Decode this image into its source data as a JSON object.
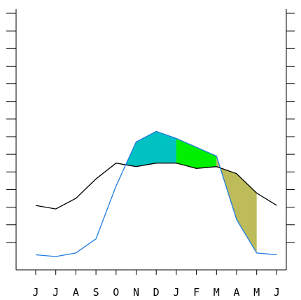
{
  "chart_data": {
    "type": "line",
    "title": "",
    "xlabel": "",
    "ylabel": "",
    "x_tick_labels": [
      "J",
      "J",
      "A",
      "S",
      "O",
      "N",
      "D",
      "J",
      "F",
      "M",
      "A",
      "M",
      "J"
    ],
    "ylim": [
      0,
      14
    ],
    "grid": false,
    "series": [
      {
        "key": "black",
        "color": "#000000",
        "values": [
          3.1,
          2.9,
          3.5,
          4.6,
          5.5,
          5.3,
          5.5,
          5.5,
          5.2,
          5.3,
          4.9,
          3.8,
          3.1
        ]
      },
      {
        "key": "blue",
        "color": "#1e7be0",
        "values": [
          0.3,
          0.2,
          0.4,
          1.2,
          4.2,
          6.7,
          7.3,
          6.9,
          6.4,
          5.9,
          2.3,
          0.4,
          0.3
        ]
      }
    ],
    "fill_colors": {
      "nov_dec": "#00c2c2",
      "jan_mar": "#00f000",
      "mar_jun": "#bdbb5a"
    }
  }
}
